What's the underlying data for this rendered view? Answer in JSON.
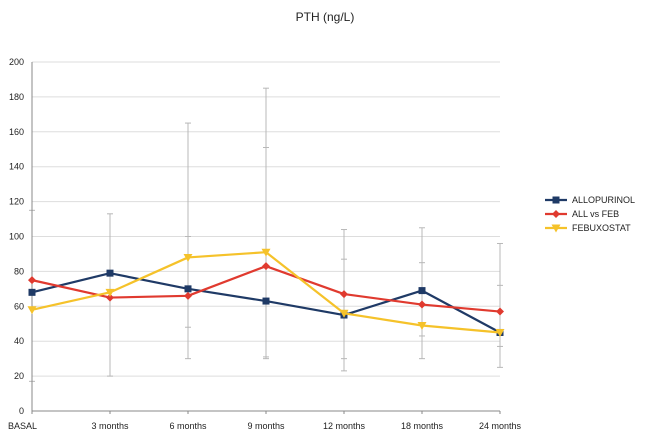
{
  "chart_data": {
    "type": "line",
    "title": "PTH (ng/L)",
    "xlabel": "",
    "ylabel": "",
    "categories": [
      "BASAL",
      "3 months",
      "6 months",
      "9 months",
      "12 months",
      "18 months",
      "24 months"
    ],
    "ylim": [
      0,
      200
    ],
    "yticks": [
      0,
      20,
      40,
      60,
      80,
      100,
      120,
      140,
      160,
      180,
      200
    ],
    "grid": true,
    "legend_position": "right",
    "series": [
      {
        "name": "ALLOPURINOL",
        "color": "#1f3a66",
        "marker": "square",
        "values": [
          68,
          79,
          70,
          63,
          55,
          69,
          45
        ]
      },
      {
        "name": "ALL vs FEB",
        "color": "#e03a2f",
        "marker": "diamond",
        "values": [
          75,
          65,
          66,
          83,
          67,
          61,
          57
        ]
      },
      {
        "name": "FEBUXOSTAT",
        "color": "#f5c22a",
        "marker": "triangle-down",
        "values": [
          58,
          68,
          88,
          91,
          56,
          49,
          45
        ]
      }
    ],
    "error_bars": [
      {
        "category_index": 0,
        "low": 17,
        "high": 115
      },
      {
        "category_index": 1,
        "low": 20,
        "high": 113
      },
      {
        "category_index": 2,
        "low": 30,
        "high": 165
      },
      {
        "category_index": 2,
        "low": 48,
        "high": 100
      },
      {
        "category_index": 3,
        "low": 30,
        "high": 185
      },
      {
        "category_index": 3,
        "low": 31,
        "high": 151
      },
      {
        "category_index": 4,
        "low": 23,
        "high": 104
      },
      {
        "category_index": 4,
        "low": 30,
        "high": 87
      },
      {
        "category_index": 5,
        "low": 30,
        "high": 105
      },
      {
        "category_index": 5,
        "low": 43,
        "high": 85
      },
      {
        "category_index": 6,
        "low": 25,
        "high": 96
      },
      {
        "category_index": 6,
        "low": 37,
        "high": 72
      }
    ]
  }
}
